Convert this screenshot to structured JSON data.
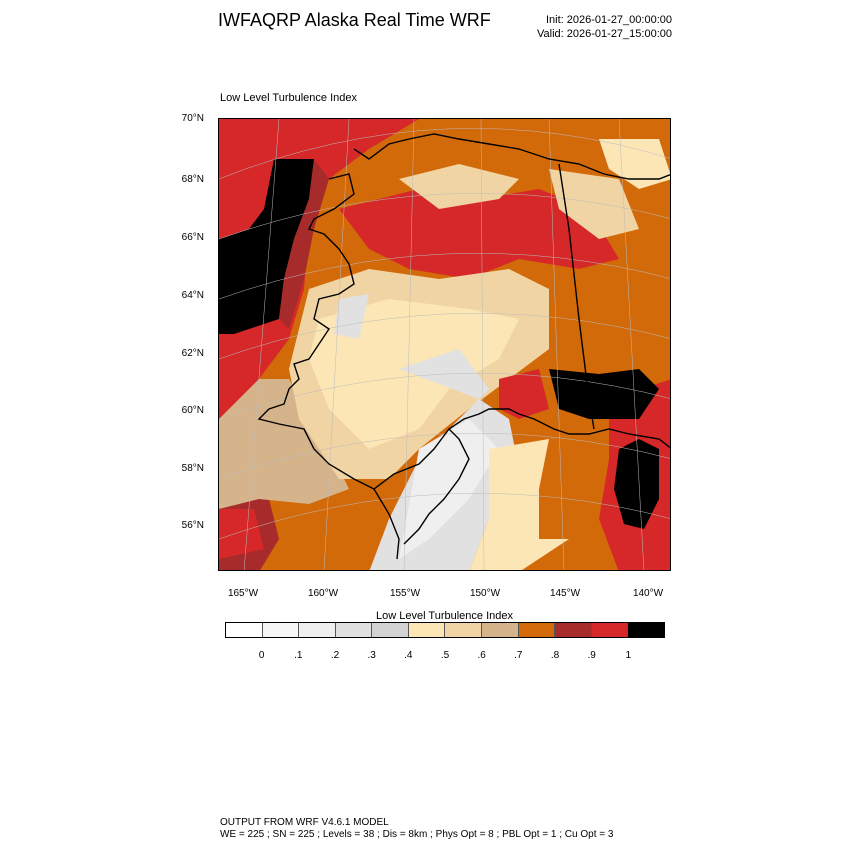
{
  "header": {
    "title": "IWFAQRP Alaska Real Time WRF",
    "init": "Init: 2026-01-27_00:00:00",
    "valid": "Valid: 2026-01-27_15:00:00"
  },
  "plot": {
    "label": "Low Level Turbulence Index",
    "lat_labels": [
      "70°N",
      "68°N",
      "66°N",
      "64°N",
      "62°N",
      "60°N",
      "58°N",
      "56°N"
    ],
    "lon_labels": [
      "165°W",
      "160°W",
      "155°W",
      "150°W",
      "145°W",
      "140°W"
    ]
  },
  "colorbar": {
    "title": "Low Level Turbulence Index",
    "colors": [
      "#ffffff",
      "#f7f7f7",
      "#efefef",
      "#e1e1e1",
      "#d3d3d3",
      "#fde6b5",
      "#f1d4a4",
      "#d5b48c",
      "#d36a0a",
      "#a72b2b",
      "#d62828",
      "#000000"
    ],
    "labels": [
      "0",
      ".1",
      ".2",
      ".3",
      ".4",
      ".5",
      ".6",
      ".7",
      ".8",
      ".9",
      "1"
    ]
  },
  "footer": {
    "line1": "OUTPUT FROM WRF V4.6.1 MODEL",
    "line2": "WE = 225 ; SN = 225 ; Levels = 38 ; Dis = 8km ; Phys Opt = 8 ; PBL Opt = 1 ; Cu Opt = 3"
  }
}
